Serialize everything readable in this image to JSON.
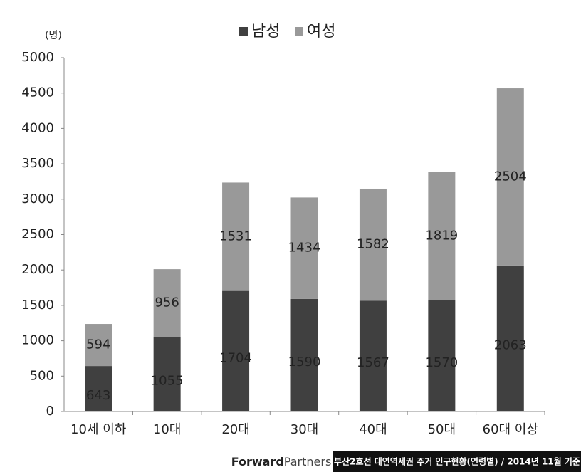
{
  "chart_data": {
    "type": "stacked_bar",
    "y_unit": "(명)",
    "categories": [
      "10세 이하",
      "10대",
      "20대",
      "30대",
      "40대",
      "50대",
      "60대 이상"
    ],
    "series": [
      {
        "name": "남성",
        "color": "#404040",
        "values": [
          643,
          1055,
          1704,
          1590,
          1567,
          1570,
          2063
        ]
      },
      {
        "name": "여성",
        "color": "#999999",
        "values": [
          594,
          956,
          1531,
          1434,
          1582,
          1819,
          2504
        ]
      }
    ],
    "ylim": [
      0,
      5000
    ],
    "yticks": [
      0,
      500,
      1000,
      1500,
      2000,
      2500,
      3000,
      3500,
      4000,
      4500,
      5000
    ],
    "legend": "top",
    "brand": {
      "bold": "Forward",
      "light": "Partners"
    },
    "source": "부산2호선 대연역세권 주거 인구현황(연령별) / 2014년 11월 기준"
  }
}
